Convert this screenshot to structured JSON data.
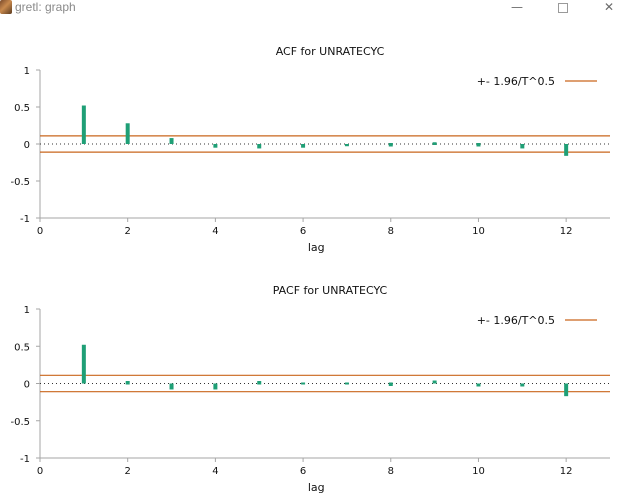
{
  "window": {
    "title": "gretl: graph",
    "minimize_glyph": "—",
    "close_glyph": "✕",
    "icon": "gretl-app-icon"
  },
  "colors": {
    "bar": "#1f9f76",
    "band": "#c9661c",
    "axis": "#a6a6a6",
    "zero_line": "#333333"
  },
  "chart_data": [
    {
      "type": "bar",
      "title": "ACF for UNRATECYC",
      "xlabel": "lag",
      "ylabel": "",
      "xlim": [
        0,
        13
      ],
      "ylim": [
        -1,
        1
      ],
      "xticks": [
        "0",
        "2",
        "4",
        "6",
        "8",
        "10",
        "12"
      ],
      "yticks": [
        "1",
        "0.5",
        "0",
        "-0.5",
        "-1"
      ],
      "legend": "+- 1.96/T^0.5",
      "legend_position": "top-right",
      "band": 0.11,
      "x": [
        1,
        2,
        3,
        4,
        5,
        6,
        7,
        8,
        9,
        10,
        11,
        12
      ],
      "values": [
        0.52,
        0.28,
        0.08,
        -0.05,
        -0.06,
        -0.05,
        -0.03,
        -0.02,
        0.01,
        -0.02,
        -0.06,
        -0.16
      ]
    },
    {
      "type": "bar",
      "title": "PACF for UNRATECYC",
      "xlabel": "lag",
      "ylabel": "",
      "xlim": [
        0,
        13
      ],
      "ylim": [
        -1,
        1
      ],
      "xticks": [
        "0",
        "2",
        "4",
        "6",
        "8",
        "10",
        "12"
      ],
      "yticks": [
        "1",
        "0.5",
        "0",
        "-0.5",
        "-1"
      ],
      "legend": "+- 1.96/T^0.5",
      "legend_position": "top-right",
      "band": 0.11,
      "x": [
        1,
        2,
        3,
        4,
        5,
        6,
        7,
        8,
        9,
        10,
        11,
        12
      ],
      "values": [
        0.52,
        0.02,
        -0.08,
        -0.08,
        0.02,
        0.0,
        0.0,
        -0.02,
        0.04,
        -0.04,
        -0.04,
        -0.17
      ]
    }
  ]
}
